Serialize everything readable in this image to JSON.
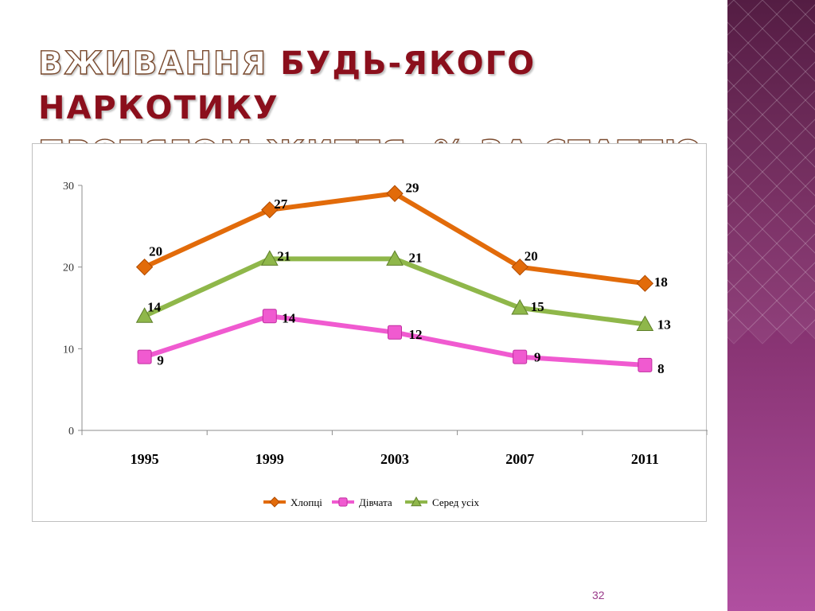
{
  "slide": {
    "title_part1": "ВЖИВАННЯ ",
    "title_part2": "БУДЬ-ЯКОГО НАРКОТИКУ",
    "title_line2": "ПРОТЯГОМ ЖИТТЯ, % ЗА СТАТТЮ",
    "page_number": "32",
    "accent_color": "#8b0f1c"
  },
  "chart_data": {
    "type": "line",
    "categories": [
      "1995",
      "1999",
      "2003",
      "2007",
      "2011"
    ],
    "ylim": [
      0,
      30
    ],
    "yticks": [
      0,
      10,
      20,
      30
    ],
    "grid": false,
    "legend_position": "bottom",
    "series": [
      {
        "name": "Хлопці",
        "values": [
          20,
          27,
          29,
          20,
          18
        ],
        "color": "#e26b0a",
        "marker": "diamond"
      },
      {
        "name": "Дівчата",
        "values": [
          9,
          14,
          12,
          9,
          8
        ],
        "color": "#f05ad0",
        "marker": "square"
      },
      {
        "name": "Серед усіх",
        "values": [
          14,
          21,
          21,
          15,
          13
        ],
        "color": "#8fb74a",
        "marker": "triangle"
      }
    ]
  }
}
